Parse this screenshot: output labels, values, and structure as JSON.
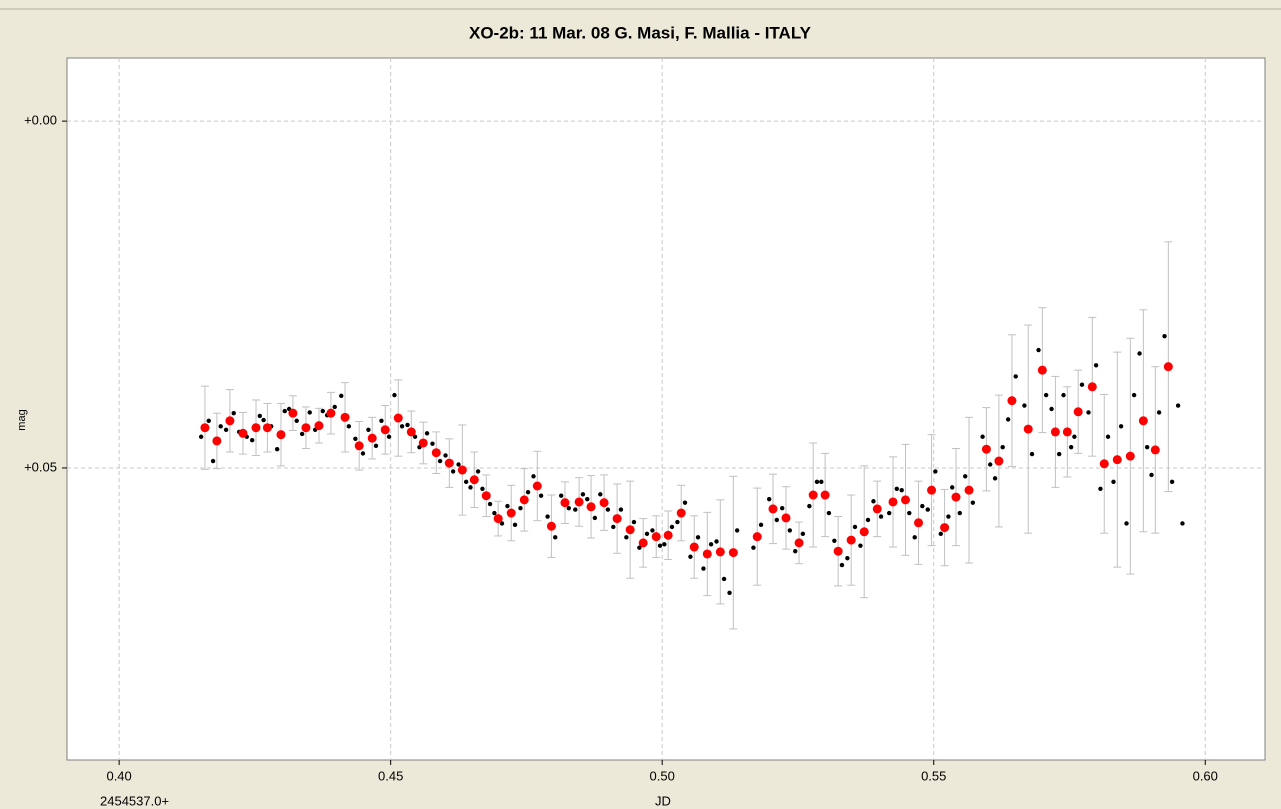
{
  "chart_data": {
    "type": "scatter",
    "title": "XO-2b: 11 Mar. 08    G. Masi, F. Mallia - ITALY",
    "x_label": "JD",
    "x_offset_label": "2454537.0+",
    "y_label": "mag",
    "xlim": [
      0.3904,
      0.611
    ],
    "ylim": [
      -0.0091,
      0.0921
    ],
    "y_inverted": true,
    "grid": true,
    "xticks": [
      {
        "value": 0.4,
        "label": "0.40"
      },
      {
        "value": 0.45,
        "label": "0.45"
      },
      {
        "value": 0.5,
        "label": "0.50"
      },
      {
        "value": 0.55,
        "label": "0.55"
      },
      {
        "value": 0.6,
        "label": "0.60"
      }
    ],
    "yticks": [
      {
        "value": 0,
        "label": "+0.00"
      },
      {
        "value": 0.05,
        "label": "+0.05"
      }
    ],
    "series": [
      {
        "color": "#000000",
        "x": [
          0.4151,
          0.4165,
          0.4173,
          0.4187,
          0.4197,
          0.4211,
          0.4221,
          0.4235,
          0.4245,
          0.4259,
          0.4266,
          0.428,
          0.4291,
          0.4305,
          0.4313,
          0.4327,
          0.4337,
          0.4351,
          0.4361,
          0.4375,
          0.4383,
          0.4397,
          0.4409,
          0.4423,
          0.4435,
          0.4449,
          0.4459,
          0.4473,
          0.4483,
          0.4497,
          0.4507,
          0.4521,
          0.4531,
          0.4545,
          0.4553,
          0.4567,
          0.4577,
          0.4591,
          0.4601,
          0.4615,
          0.4625,
          0.4639,
          0.4647,
          0.4661,
          0.4669,
          0.4683,
          0.4691,
          0.4705,
          0.4715,
          0.4729,
          0.4739,
          0.4753,
          0.4763,
          0.4777,
          0.4789,
          0.4803,
          0.4814,
          0.4828,
          0.484,
          0.4854,
          0.4862,
          0.4876,
          0.4886,
          0.49,
          0.491,
          0.4924,
          0.4934,
          0.4948,
          0.4958,
          0.4972,
          0.4982,
          0.4996,
          0.5004,
          0.5018,
          0.5028,
          0.5042,
          0.5052,
          0.5066,
          0.5076,
          0.509,
          0.51,
          0.5114,
          0.5124,
          0.5138,
          0.5168,
          0.5182,
          0.5197,
          0.5211,
          0.5221,
          0.5235,
          0.5245,
          0.5259,
          0.5271,
          0.5285,
          0.5293,
          0.5307,
          0.5317,
          0.5331,
          0.5341,
          0.5355,
          0.5365,
          0.5379,
          0.5389,
          0.5403,
          0.5418,
          0.5432,
          0.5441,
          0.5455,
          0.5465,
          0.5479,
          0.5489,
          0.5503,
          0.5513,
          0.5527,
          0.5534,
          0.5548,
          0.5558,
          0.5572,
          0.559,
          0.5604,
          0.5613,
          0.5627,
          0.5637,
          0.5651,
          0.5667,
          0.5681,
          0.5693,
          0.5707,
          0.5717,
          0.5731,
          0.5739,
          0.5753,
          0.5759,
          0.5773,
          0.5785,
          0.5799,
          0.5807,
          0.5821,
          0.5831,
          0.5845,
          0.5855,
          0.5869,
          0.5879,
          0.5893,
          0.5901,
          0.5915,
          0.5925,
          0.5939,
          0.595,
          0.5958
        ],
        "values": [
          0.0455,
          0.0432,
          0.049,
          0.044,
          0.0445,
          0.0421,
          0.0448,
          0.0455,
          0.046,
          0.0425,
          0.0431,
          0.044,
          0.0473,
          0.0418,
          0.0415,
          0.0432,
          0.0451,
          0.042,
          0.0445,
          0.0418,
          0.0424,
          0.0412,
          0.0396,
          0.044,
          0.0458,
          0.0479,
          0.0445,
          0.0468,
          0.0432,
          0.0455,
          0.0395,
          0.044,
          0.0438,
          0.0455,
          0.047,
          0.045,
          0.0465,
          0.049,
          0.0482,
          0.0505,
          0.0495,
          0.052,
          0.0528,
          0.0505,
          0.053,
          0.0552,
          0.0565,
          0.058,
          0.0555,
          0.0582,
          0.0558,
          0.0535,
          0.0512,
          0.054,
          0.057,
          0.06,
          0.054,
          0.0558,
          0.056,
          0.0538,
          0.0545,
          0.0572,
          0.0538,
          0.056,
          0.0585,
          0.056,
          0.06,
          0.0578,
          0.0615,
          0.0595,
          0.059,
          0.0612,
          0.061,
          0.0585,
          0.0578,
          0.055,
          0.0628,
          0.06,
          0.0645,
          0.061,
          0.0606,
          0.066,
          0.068,
          0.059,
          0.0615,
          0.0582,
          0.0545,
          0.0575,
          0.0558,
          0.059,
          0.062,
          0.0595,
          0.0555,
          0.052,
          0.052,
          0.0565,
          0.0605,
          0.064,
          0.063,
          0.0585,
          0.0612,
          0.0575,
          0.0548,
          0.057,
          0.0565,
          0.053,
          0.0532,
          0.0565,
          0.06,
          0.0555,
          0.056,
          0.0505,
          0.0595,
          0.057,
          0.0528,
          0.0565,
          0.0512,
          0.055,
          0.0455,
          0.0495,
          0.0515,
          0.047,
          0.043,
          0.0368,
          0.041,
          0.048,
          0.033,
          0.0395,
          0.0415,
          0.048,
          0.0395,
          0.047,
          0.0455,
          0.038,
          0.042,
          0.0352,
          0.053,
          0.0455,
          0.052,
          0.044,
          0.058,
          0.0395,
          0.0335,
          0.047,
          0.051,
          0.042,
          0.031,
          0.052,
          0.041,
          0.058
        ]
      },
      {
        "color": "#ff0000",
        "error_color": "#c0c0c0",
        "x": [
          0.4158,
          0.418,
          0.4204,
          0.4228,
          0.4252,
          0.4273,
          0.4298,
          0.432,
          0.4344,
          0.4368,
          0.439,
          0.4416,
          0.4442,
          0.4466,
          0.449,
          0.4514,
          0.4538,
          0.456,
          0.4584,
          0.4608,
          0.4632,
          0.4654,
          0.4676,
          0.4698,
          0.4722,
          0.4746,
          0.477,
          0.4796,
          0.4821,
          0.4847,
          0.4869,
          0.4893,
          0.4917,
          0.4941,
          0.4965,
          0.4989,
          0.5011,
          0.5035,
          0.5059,
          0.5083,
          0.5107,
          0.5131,
          0.5175,
          0.5204,
          0.5228,
          0.5252,
          0.5278,
          0.53,
          0.5324,
          0.5348,
          0.5372,
          0.5396,
          0.5425,
          0.5448,
          0.5472,
          0.5496,
          0.552,
          0.5541,
          0.5565,
          0.5597,
          0.562,
          0.5644,
          0.5674,
          0.57,
          0.5724,
          0.5746,
          0.5766,
          0.5792,
          0.5814,
          0.5838,
          0.5862,
          0.5886,
          0.5908,
          0.5932
        ],
        "values": [
          0.0442,
          0.0461,
          0.0432,
          0.045,
          0.0442,
          0.0442,
          0.0452,
          0.0421,
          0.0442,
          0.0439,
          0.0421,
          0.0427,
          0.0468,
          0.0457,
          0.0445,
          0.0428,
          0.0448,
          0.0464,
          0.0478,
          0.0493,
          0.0503,
          0.0517,
          0.054,
          0.0573,
          0.0565,
          0.0546,
          0.0526,
          0.0584,
          0.055,
          0.0549,
          0.0556,
          0.055,
          0.0573,
          0.0589,
          0.0608,
          0.0599,
          0.0597,
          0.0565,
          0.0614,
          0.0624,
          0.0621,
          0.0622,
          0.0599,
          0.0559,
          0.0572,
          0.0608,
          0.0539,
          0.0539,
          0.062,
          0.0604,
          0.0592,
          0.0559,
          0.0549,
          0.0546,
          0.0579,
          0.0532,
          0.0586,
          0.0542,
          0.0532,
          0.0473,
          0.049,
          0.0403,
          0.0444,
          0.0359,
          0.0448,
          0.0448,
          0.0419,
          0.0383,
          0.0494,
          0.0488,
          0.0483,
          0.0432,
          0.0474,
          0.0354
        ],
        "errors": [
          0.006,
          0.004,
          0.0045,
          0.003,
          0.004,
          0.0035,
          0.0045,
          0.0025,
          0.003,
          0.0025,
          0.003,
          0.005,
          0.0035,
          0.003,
          0.0035,
          0.0055,
          0.003,
          0.003,
          0.003,
          0.0035,
          0.0065,
          0.004,
          0.003,
          0.0025,
          0.004,
          0.0045,
          0.005,
          0.0045,
          0.003,
          0.0035,
          0.0045,
          0.004,
          0.005,
          0.007,
          0.0035,
          0.003,
          0.0035,
          0.004,
          0.0045,
          0.006,
          0.0075,
          0.011,
          0.007,
          0.005,
          0.0045,
          0.003,
          0.0075,
          0.006,
          0.005,
          0.0065,
          0.0095,
          0.004,
          0.0065,
          0.008,
          0.006,
          0.008,
          0.0055,
          0.007,
          0.0105,
          0.006,
          0.0095,
          0.0095,
          0.015,
          0.009,
          0.008,
          0.0065,
          0.006,
          0.01,
          0.01,
          0.0155,
          0.017,
          0.016,
          0.012,
          0.018
        ]
      }
    ]
  }
}
